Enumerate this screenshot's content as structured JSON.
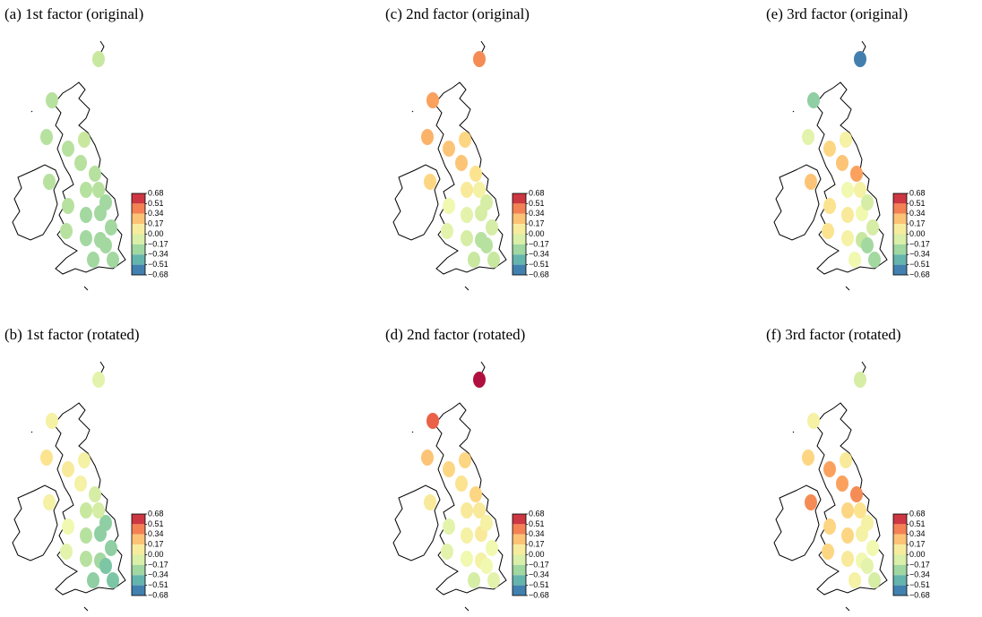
{
  "panels": [
    {
      "title": "(a) 1st factor (original)",
      "values": [
        -0.15,
        -0.2,
        -0.2,
        -0.2,
        -0.15,
        -0.2,
        -0.2,
        -0.2,
        -0.2,
        -0.2,
        -0.25,
        -0.25,
        -0.25,
        -0.2,
        -0.25,
        -0.25,
        -0.25,
        -0.25,
        -0.25,
        -0.25,
        -0.2
      ]
    },
    {
      "title": "(c) 2nd factor (original)",
      "values": [
        0.4,
        0.35,
        0.3,
        0.25,
        0.2,
        0.25,
        0.15,
        0.1,
        0.2,
        0.0,
        -0.05,
        -0.1,
        -0.1,
        -0.05,
        -0.1,
        -0.2,
        -0.1,
        -0.2,
        -0.15,
        -0.15,
        0.05
      ]
    },
    {
      "title": "(e) 3rd factor (original)",
      "values": [
        -0.6,
        -0.3,
        -0.05,
        0.2,
        0.05,
        0.25,
        0.35,
        0.0,
        0.25,
        0.15,
        0.1,
        0.0,
        -0.1,
        0.15,
        0.05,
        -0.15,
        -0.1,
        -0.25,
        0.0,
        -0.25,
        0.05
      ]
    },
    {
      "title": "(b) 1st factor (rotated)",
      "values": [
        -0.05,
        0.05,
        0.15,
        0.1,
        0.05,
        0.05,
        -0.1,
        -0.15,
        0.05,
        0.0,
        -0.2,
        -0.3,
        -0.3,
        -0.05,
        -0.2,
        -0.25,
        -0.3,
        -0.35,
        -0.3,
        -0.35,
        -0.1
      ]
    },
    {
      "title": "(d) 2nd factor (rotated)",
      "values": [
        0.68,
        0.5,
        0.25,
        0.2,
        0.2,
        0.15,
        0.2,
        0.1,
        0.1,
        -0.05,
        0.05,
        0.1,
        0.05,
        -0.05,
        0.0,
        0.05,
        0.0,
        0.0,
        -0.1,
        -0.05,
        0.1
      ]
    },
    {
      "title": "(f) 3rd factor (rotated)",
      "values": [
        -0.1,
        0.05,
        0.2,
        0.35,
        0.1,
        0.35,
        0.4,
        0.2,
        0.4,
        0.2,
        0.2,
        0.05,
        0.05,
        0.2,
        0.1,
        0.0,
        0.0,
        -0.05,
        0.05,
        -0.1,
        0.15
      ]
    }
  ],
  "colorbar": {
    "ticks": [
      0.68,
      0.51,
      0.34,
      0.17,
      {
        "value": 0,
        "label": "0.00"
      },
      {
        "value": -0.17,
        "label": "−0.17"
      },
      {
        "value": -0.34,
        "label": "−0.34"
      },
      {
        "value": -0.51,
        "label": "−0.51"
      },
      {
        "value": -0.68,
        "label": "−0.68"
      }
    ]
  }
}
